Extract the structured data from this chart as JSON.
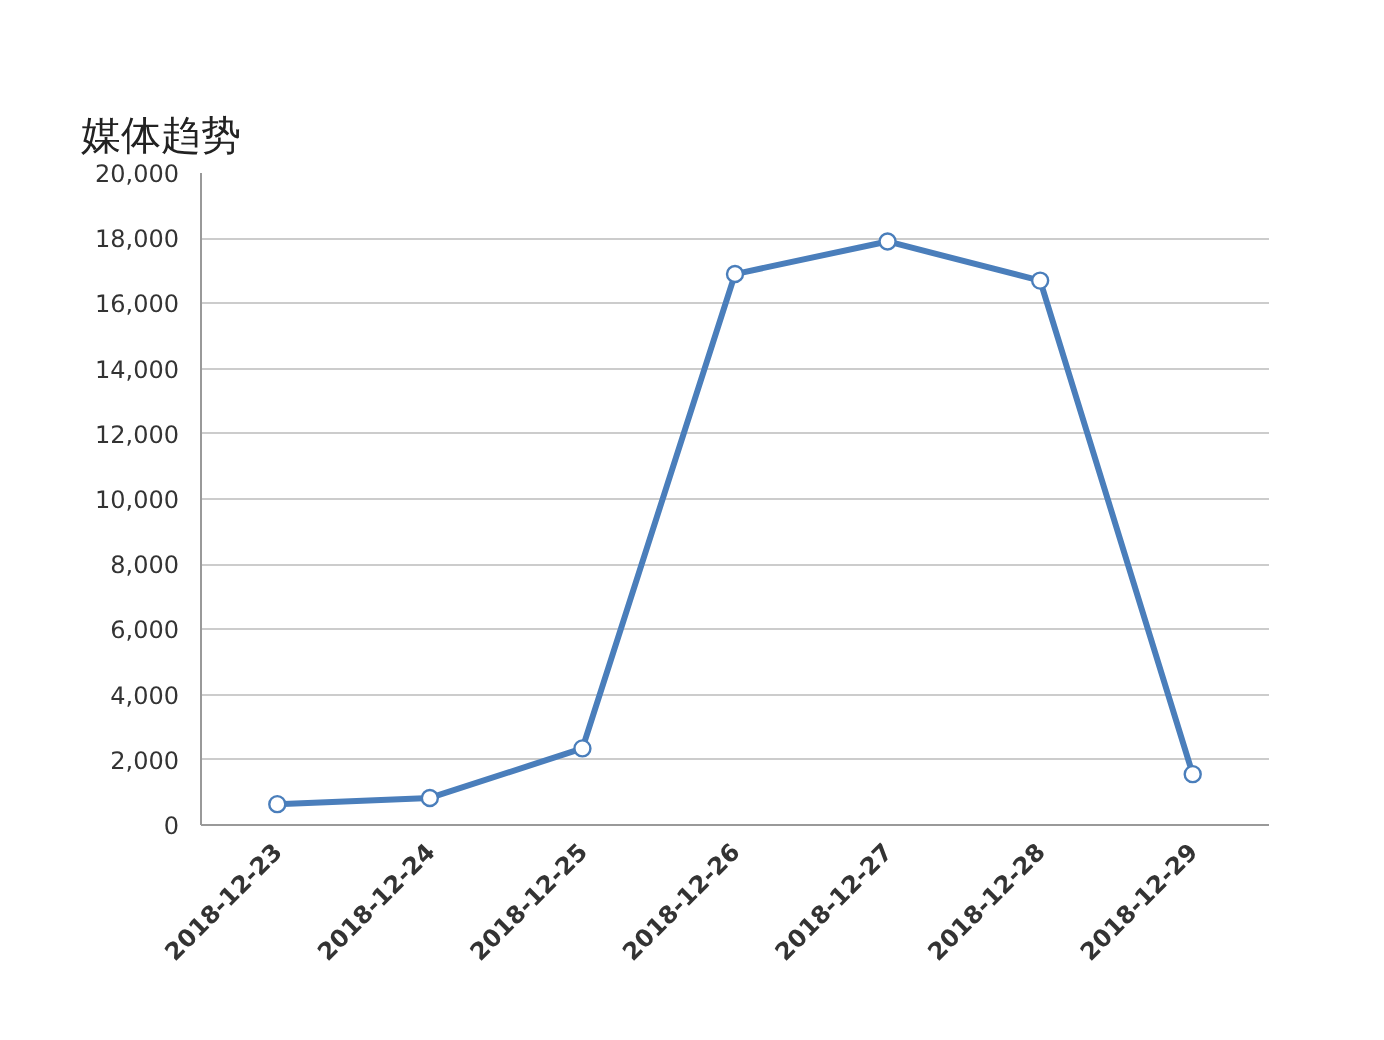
{
  "chart_data": {
    "type": "line",
    "title": "媒体趋势",
    "categories": [
      "2018-12-23",
      "2018-12-24",
      "2018-12-25",
      "2018-12-26",
      "2018-12-27",
      "2018-12-28",
      "2018-12-29"
    ],
    "series": [
      {
        "color": "#4a7ebb",
        "values": [
          640,
          830,
          2350,
          16900,
          17900,
          16700,
          1560
        ]
      }
    ],
    "ylim": [
      0,
      20000
    ],
    "yticks": [
      {
        "value": 0,
        "label": "0"
      },
      {
        "value": 2000,
        "label": "2,000"
      },
      {
        "value": 4000,
        "label": "4,000"
      },
      {
        "value": 6000,
        "label": "6,000"
      },
      {
        "value": 8000,
        "label": "8,000"
      },
      {
        "value": 10000,
        "label": "10,000"
      },
      {
        "value": 12000,
        "label": "12,000"
      },
      {
        "value": 14000,
        "label": "14,000"
      },
      {
        "value": 16000,
        "label": "16,000"
      },
      {
        "value": 18000,
        "label": "18,000"
      },
      {
        "value": 20000,
        "label": "20,000"
      }
    ],
    "grid": "y",
    "marker": "circle",
    "line_style": "solid"
  }
}
